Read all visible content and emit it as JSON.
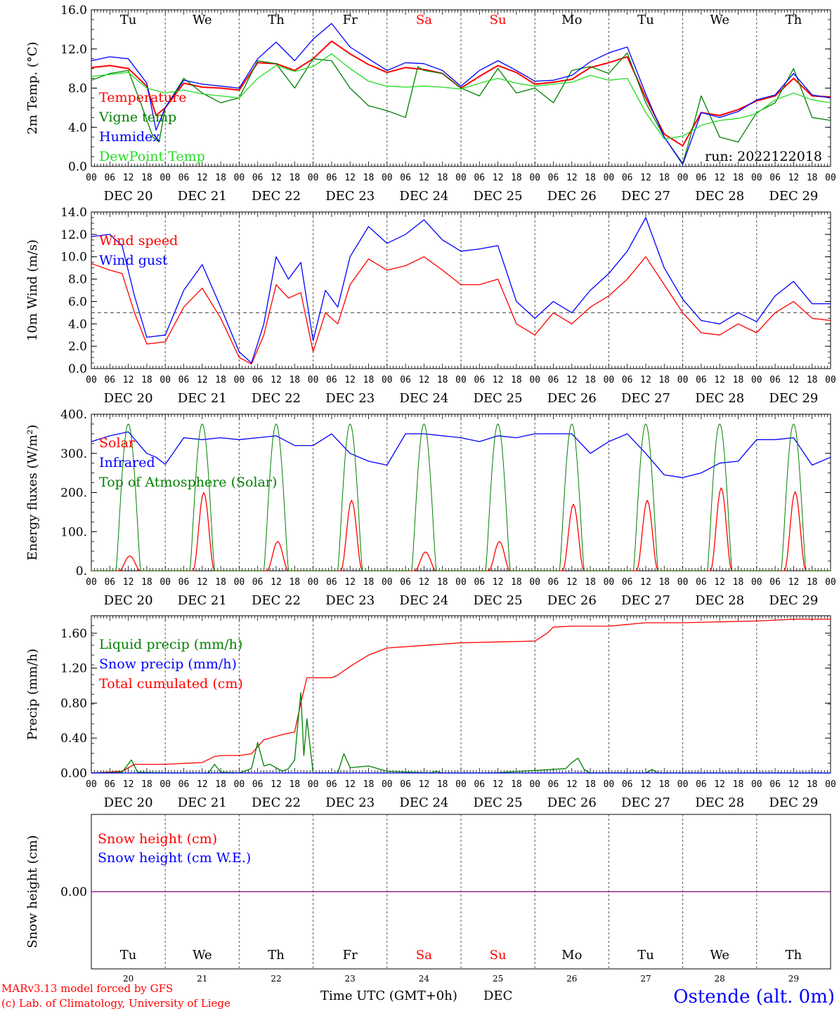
{
  "run_label": "run: 2022122018",
  "days": [
    "Tu",
    "We",
    "Th",
    "Fr",
    "Sa",
    "Su",
    "Mo",
    "Tu",
    "We",
    "Th"
  ],
  "weekend_days": [
    4,
    5
  ],
  "date_labels": [
    "DEC 20",
    "DEC 21",
    "DEC 22",
    "DEC 23",
    "DEC 24",
    "DEC 25",
    "DEC 26",
    "DEC 27",
    "DEC 28",
    "DEC 29"
  ],
  "hour_ticks": [
    "00",
    "06",
    "12",
    "18"
  ],
  "day_numbers": [
    "20",
    "21",
    "22",
    "23",
    "24",
    "25",
    "26",
    "27",
    "28",
    "29"
  ],
  "footer": {
    "model_line": "MARv3.13 model forced by GFS",
    "lab_line": "(c) Lab. of Climatology, University of Liege",
    "axis_title": "Time UTC (GMT+0h)",
    "month": "DEC",
    "station": "Ostende (alt. 0m)"
  },
  "colors": {
    "red": "#ff0000",
    "dark_green": "#008000",
    "blue": "#0000ff",
    "light_green": "#22dd22",
    "purple": "#800080",
    "grid": "#555555"
  },
  "chart_data": [
    {
      "type": "line",
      "id": "temperature",
      "ylabel": "2m Temp. (°C)",
      "ylim": [
        0,
        16
      ],
      "yticks": [
        "0.0",
        "4.0",
        "8.0",
        "12.0",
        "16.0"
      ],
      "x_unit": "hours since DEC 20 00 UTC",
      "legend": [
        "Temperature",
        "Vigne temp",
        "Humidex",
        "DewPoint Temp"
      ],
      "series": [
        {
          "name": "Temperature",
          "color": "red",
          "x": [
            0,
            6,
            12,
            18,
            21,
            24,
            30,
            36,
            42,
            48,
            54,
            60,
            66,
            72,
            78,
            84,
            90,
            96,
            102,
            108,
            114,
            120,
            126,
            132,
            138,
            144,
            150,
            156,
            162,
            168,
            174,
            180,
            186,
            192,
            198,
            204,
            210,
            216,
            222,
            228,
            234,
            240
          ],
          "y": [
            10.1,
            10.3,
            10,
            8.2,
            5.2,
            6,
            8.5,
            8.1,
            8,
            7.8,
            10.6,
            10.5,
            9.8,
            11,
            12.8,
            11.5,
            10.4,
            9.6,
            10.1,
            9.9,
            9.5,
            8,
            9.2,
            10.3,
            9.6,
            8.4,
            8.6,
            8.9,
            10.1,
            10.6,
            11.2,
            7,
            3.3,
            2.1,
            5.5,
            5.2,
            5.8,
            6.7,
            7.2,
            9,
            7.2,
            7.1
          ]
        },
        {
          "name": "Vigne temp",
          "color": "dark_green",
          "x": [
            0,
            6,
            12,
            16,
            20,
            22,
            24,
            30,
            36,
            42,
            48,
            54,
            60,
            66,
            72,
            78,
            84,
            90,
            96,
            102,
            106,
            108,
            114,
            120,
            126,
            132,
            138,
            144,
            150,
            156,
            162,
            168,
            174,
            180,
            186,
            192,
            194,
            198,
            204,
            210,
            216,
            222,
            228,
            234,
            240
          ],
          "y": [
            8.8,
            9.5,
            9.8,
            6.5,
            3,
            2.5,
            6,
            9,
            7.5,
            6.5,
            7,
            10.8,
            10.5,
            8,
            11,
            10.8,
            8,
            6.2,
            5.7,
            5,
            10.2,
            9.8,
            9.5,
            8,
            7.2,
            10,
            7.5,
            8,
            6.5,
            9.8,
            10.2,
            9.5,
            11.6,
            6.5,
            3,
            0.3,
            2.5,
            7.2,
            3,
            2.5,
            5.5,
            6.5,
            10,
            5,
            4.7
          ]
        },
        {
          "name": "Humidex",
          "color": "blue",
          "x": [
            0,
            6,
            12,
            18,
            21,
            24,
            30,
            36,
            42,
            48,
            54,
            60,
            66,
            72,
            78,
            84,
            90,
            96,
            102,
            108,
            114,
            120,
            126,
            132,
            138,
            144,
            150,
            156,
            162,
            168,
            174,
            180,
            186,
            192,
            198,
            204,
            210,
            216,
            222,
            228,
            234,
            240
          ],
          "y": [
            10.8,
            11.2,
            11,
            8.5,
            3.7,
            6,
            8.8,
            8.4,
            8.2,
            8,
            11,
            12.7,
            10.8,
            13,
            14.6,
            12.2,
            11,
            9.8,
            10.6,
            10.5,
            9.8,
            8.2,
            9.8,
            10.8,
            9.8,
            8.7,
            8.8,
            9.3,
            10.7,
            11.6,
            12.2,
            7.4,
            3,
            0.2,
            5.5,
            5,
            5.6,
            6.8,
            7.3,
            9.5,
            7.3,
            7
          ]
        },
        {
          "name": "DewPoint Temp",
          "color": "light_green",
          "x": [
            0,
            6,
            12,
            18,
            24,
            30,
            36,
            42,
            48,
            54,
            60,
            66,
            72,
            78,
            84,
            90,
            96,
            102,
            108,
            114,
            120,
            126,
            132,
            138,
            144,
            150,
            156,
            162,
            168,
            174,
            180,
            186,
            192,
            198,
            204,
            210,
            216,
            222,
            228,
            234,
            240
          ],
          "y": [
            9.2,
            9.4,
            9.6,
            8,
            7.5,
            7.8,
            7.4,
            7.2,
            7,
            9,
            10.3,
            9.7,
            10.2,
            11.5,
            10,
            8.7,
            8.2,
            8.1,
            8.2,
            8.1,
            7.9,
            8.5,
            9,
            8.5,
            8.2,
            8.4,
            8.6,
            9.3,
            8.8,
            9,
            5.5,
            2.8,
            3.1,
            4.2,
            4.7,
            4.9,
            5.4,
            6.8,
            7.5,
            6.8,
            6.5
          ]
        }
      ]
    },
    {
      "type": "line",
      "id": "wind",
      "ylabel": "10m Wind (m/s)",
      "ylim": [
        0,
        14
      ],
      "yticks": [
        "0.0",
        "2.0",
        "4.0",
        "6.0",
        "8.0",
        "10.0",
        "12.0",
        "14.0"
      ],
      "reference_line": 5,
      "legend": [
        "Wind speed",
        "Wind gust"
      ],
      "series": [
        {
          "name": "Wind speed",
          "color": "red",
          "x": [
            0,
            6,
            10,
            14,
            18,
            24,
            30,
            36,
            42,
            48,
            52,
            56,
            60,
            64,
            68,
            72,
            76,
            80,
            84,
            90,
            96,
            102,
            108,
            114,
            120,
            126,
            132,
            138,
            144,
            150,
            156,
            162,
            168,
            174,
            180,
            186,
            192,
            198,
            204,
            210,
            216,
            222,
            228,
            234,
            240
          ],
          "y": [
            9.4,
            8.8,
            8.5,
            5,
            2.2,
            2.4,
            5.5,
            7.2,
            4.5,
            1,
            0.4,
            3,
            7.5,
            6.3,
            6.8,
            1.5,
            5,
            4,
            7.5,
            9.8,
            8.8,
            9.2,
            10,
            8.8,
            7.5,
            7.5,
            8,
            4,
            3,
            5,
            4,
            5.5,
            6.5,
            8,
            10,
            7.5,
            5,
            3.2,
            3,
            4,
            3.2,
            5,
            6,
            4.5,
            4.3
          ]
        },
        {
          "name": "Wind gust",
          "color": "blue",
          "x": [
            0,
            6,
            10,
            14,
            18,
            24,
            30,
            36,
            42,
            48,
            52,
            56,
            60,
            64,
            68,
            72,
            76,
            80,
            84,
            90,
            96,
            102,
            108,
            114,
            120,
            126,
            132,
            138,
            144,
            150,
            156,
            162,
            168,
            174,
            180,
            186,
            192,
            198,
            204,
            210,
            216,
            222,
            228,
            234,
            240
          ],
          "y": [
            11.8,
            12,
            11,
            6.5,
            2.8,
            3,
            7,
            9.3,
            5.5,
            1.5,
            0.5,
            4,
            10,
            8,
            9.5,
            2.5,
            7,
            5.5,
            10,
            12.7,
            11.2,
            12,
            13.3,
            11.5,
            10.5,
            10.7,
            11,
            6,
            4.5,
            6,
            5,
            7,
            8.5,
            10.5,
            13.5,
            9,
            6.2,
            4.3,
            4,
            5,
            4.2,
            6.5,
            7.8,
            5.8,
            5.8
          ]
        }
      ]
    },
    {
      "type": "line",
      "id": "energy",
      "ylabel": "Energy fluxes (W/m²)",
      "ylim": [
        0,
        400
      ],
      "yticks": [
        "0.",
        "100.",
        "200.",
        "300.",
        "400."
      ],
      "legend": [
        "Solar",
        "Infrared",
        "Top of Atmosphere (Solar)"
      ],
      "toa_daily": {
        "sunrise_h": 8,
        "sunset_h": 16,
        "peak": 375
      },
      "series": [
        {
          "name": "Solar",
          "color": "red",
          "daily_peaks": [
            38,
            200,
            75,
            180,
            48,
            75,
            170,
            180,
            212,
            202
          ]
        },
        {
          "name": "Infrared",
          "color": "blue",
          "x": [
            0,
            6,
            12,
            18,
            21,
            24,
            30,
            36,
            42,
            48,
            54,
            60,
            66,
            72,
            78,
            84,
            90,
            96,
            102,
            108,
            114,
            120,
            126,
            132,
            138,
            144,
            150,
            156,
            162,
            168,
            174,
            180,
            186,
            192,
            198,
            204,
            210,
            216,
            222,
            228,
            234,
            240
          ],
          "y": [
            330,
            345,
            355,
            300,
            290,
            272,
            340,
            335,
            340,
            335,
            340,
            345,
            320,
            320,
            350,
            300,
            280,
            270,
            350,
            350,
            345,
            340,
            330,
            345,
            340,
            350,
            350,
            350,
            300,
            330,
            350,
            300,
            245,
            238,
            250,
            275,
            280,
            335,
            335,
            340,
            270,
            290
          ]
        },
        {
          "name": "Top of Atmosphere (Solar)",
          "color": "dark_green"
        }
      ]
    },
    {
      "type": "line",
      "id": "precip",
      "ylabel": "Precip (mm/h)",
      "ylim": [
        0,
        1.8
      ],
      "yticks": [
        "0.00",
        "0.40",
        "0.80",
        "1.20",
        "1.60"
      ],
      "legend": [
        "Liquid precip (mm/h)",
        "Snow precip (mm/h)",
        "Total cumulated (cm)"
      ],
      "series": [
        {
          "name": "Total cumulated (cm)",
          "color": "red",
          "x": [
            0,
            10,
            14,
            18,
            24,
            36,
            40,
            42,
            48,
            52,
            56,
            62,
            66,
            68,
            70,
            72,
            78,
            80,
            84,
            90,
            96,
            108,
            120,
            132,
            144,
            148,
            150,
            156,
            168,
            180,
            192,
            204,
            216,
            228,
            240
          ],
          "y": [
            0,
            0.02,
            0.1,
            0.1,
            0.1,
            0.12,
            0.19,
            0.2,
            0.2,
            0.22,
            0.38,
            0.44,
            0.47,
            0.8,
            1.09,
            1.09,
            1.09,
            1.12,
            1.22,
            1.35,
            1.43,
            1.46,
            1.49,
            1.5,
            1.51,
            1.6,
            1.67,
            1.68,
            1.68,
            1.72,
            1.72,
            1.73,
            1.74,
            1.76,
            1.76
          ]
        },
        {
          "name": "Liquid precip (mm/h)",
          "color": "dark_green",
          "x": [
            0,
            10,
            13,
            15,
            24,
            38,
            40,
            42,
            48,
            52,
            54,
            56,
            58,
            62,
            64,
            66,
            67,
            68,
            69,
            70,
            72,
            80,
            82,
            84,
            90,
            96,
            110,
            112,
            114,
            130,
            154,
            156,
            158,
            160,
            162,
            180,
            182,
            184,
            200,
            240
          ],
          "y": [
            0,
            0.01,
            0.15,
            0.01,
            0,
            0,
            0.1,
            0.01,
            0,
            0.05,
            0.35,
            0.08,
            0.1,
            0.02,
            0.05,
            0.15,
            0.55,
            0.92,
            0.2,
            0.62,
            0,
            0,
            0.22,
            0.06,
            0.08,
            0.02,
            0,
            0.02,
            0,
            0,
            0.05,
            0.12,
            0.17,
            0.04,
            0,
            0,
            0.04,
            0,
            0,
            0
          ]
        },
        {
          "name": "Snow precip (mm/h)",
          "color": "blue",
          "x": [
            0,
            240
          ],
          "y": [
            0,
            0
          ]
        }
      ]
    },
    {
      "type": "line",
      "id": "snow",
      "ylabel": "Snow height (cm)",
      "ylim": [
        -1,
        1
      ],
      "yticks": [
        "0.00"
      ],
      "legend": [
        "Snow height (cm)",
        "Snow height (cm W.E.)"
      ],
      "series": [
        {
          "name": "Snow height (cm)",
          "color": "purple",
          "x": [
            0,
            240
          ],
          "y": [
            0,
            0
          ]
        }
      ]
    }
  ]
}
